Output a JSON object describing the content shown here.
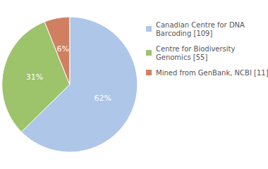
{
  "chart_data": {
    "type": "pie",
    "categories": [
      "Canadian Centre for DNA\nBarcoding [109]",
      "Centre for Biodiversity\nGenomics [55]",
      "Mined from GenBank, NCBI [11]"
    ],
    "values": [
      62,
      31,
      6
    ],
    "value_labels": [
      "62%",
      "31%",
      "6%"
    ],
    "colors": [
      "#aec6e8",
      "#9dc36b",
      "#d08060"
    ],
    "data_labels": true,
    "legend": "right"
  }
}
